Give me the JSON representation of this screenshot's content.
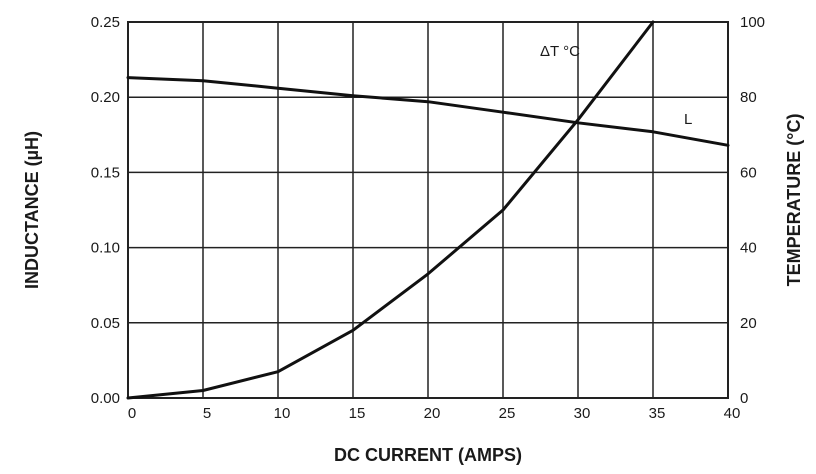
{
  "chart_data": {
    "type": "line",
    "xlabel": "DC CURRENT (AMPS)",
    "ylabel_left": "INDUCTANCE (µH)",
    "ylabel_right": "TEMPERATURE (°C)",
    "xlim": [
      0,
      40
    ],
    "ylim_left": [
      0,
      0.25
    ],
    "ylim_right": [
      0,
      100
    ],
    "x_ticks": [
      "0",
      "5",
      "10",
      "15",
      "20",
      "25",
      "30",
      "35",
      "40"
    ],
    "y_left_ticks": [
      "0.00",
      "0.05",
      "0.10",
      "0.15",
      "0.20",
      "0.25"
    ],
    "y_right_ticks": [
      "0",
      "20",
      "40",
      "60",
      "80",
      "100"
    ],
    "grid": true,
    "series": [
      {
        "name": "L",
        "axis": "left",
        "x": [
          0,
          5,
          10,
          15,
          20,
          25,
          30,
          35,
          40
        ],
        "y": [
          0.213,
          0.211,
          0.206,
          0.201,
          0.197,
          0.19,
          0.183,
          0.177,
          0.168
        ]
      },
      {
        "name": "ΔT °C",
        "axis": "right",
        "x": [
          0,
          5,
          10,
          15,
          20,
          25,
          30,
          35
        ],
        "y": [
          0,
          2,
          7,
          18,
          33,
          50,
          74,
          100
        ]
      }
    ]
  }
}
